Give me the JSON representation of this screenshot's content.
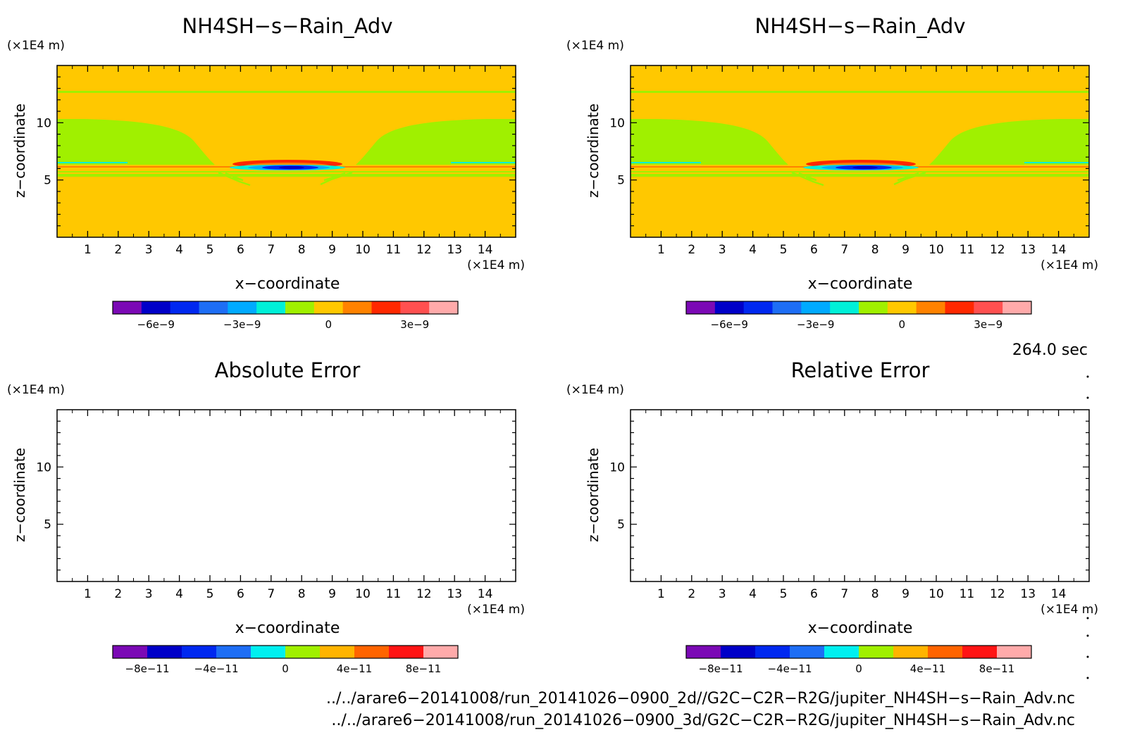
{
  "panels": [
    {
      "title": "NH4SH−s−Rain_Adv",
      "type": "contour"
    },
    {
      "title": "NH4SH−s−Rain_Adv",
      "type": "contour"
    },
    {
      "title": "Absolute Error",
      "type": "blank"
    },
    {
      "title": "Relative Error",
      "type": "blank"
    }
  ],
  "axes": {
    "xlabel": "x−coordinate",
    "ylabel": "z−coordinate",
    "unit": "(×1E4 m)",
    "xlim": [
      0,
      15
    ],
    "ylim": [
      0,
      15
    ],
    "xticks": [
      "1",
      "2",
      "3",
      "4",
      "5",
      "6",
      "7",
      "8",
      "9",
      "10",
      "11",
      "12",
      "13",
      "14"
    ],
    "yticks": [
      "5",
      "10"
    ]
  },
  "chart_data": [
    {
      "type": "heatmap",
      "title": "NH4SH−s−Rain_Adv",
      "xlabel": "x−coordinate",
      "ylabel": "z−coordinate",
      "xlim": [
        0,
        15
      ],
      "ylim": [
        0,
        15
      ],
      "background_value": 0,
      "features": [
        {
          "name": "upper-band",
          "z": 12.6,
          "value_sign": "slightly-negative"
        },
        {
          "name": "left-lobe",
          "x": [
            0,
            5
          ],
          "z": [
            6.3,
            10.2
          ],
          "value_sign": "slightly-negative"
        },
        {
          "name": "right-lobe",
          "x": [
            10.5,
            15
          ],
          "z": [
            6.3,
            10.2
          ],
          "value_sign": "slightly-negative"
        },
        {
          "name": "melting-layer",
          "z": [
            5.6,
            6.5
          ],
          "min": -6e-09,
          "max": 4e-09
        }
      ],
      "colorbar": {
        "colors": [
          "#7b09b5",
          "#0000c8",
          "#0028f0",
          "#1e6ef5",
          "#00aaff",
          "#00f0d8",
          "#a0f000",
          "#ffc800",
          "#ff8200",
          "#ff2800",
          "#ff5050",
          "#ffaaaa"
        ],
        "ticks": [
          "−6e−9",
          "−3e−9",
          "0",
          "3e−9"
        ]
      }
    },
    {
      "type": "heatmap",
      "title": "NH4SH−s−Rain_Adv",
      "xlabel": "x−coordinate",
      "ylabel": "z−coordinate",
      "xlim": [
        0,
        15
      ],
      "ylim": [
        0,
        15
      ],
      "background_value": 0,
      "colorbar": {
        "colors": [
          "#7b09b5",
          "#0000c8",
          "#0028f0",
          "#1e6ef5",
          "#00aaff",
          "#00f0d8",
          "#a0f000",
          "#ffc800",
          "#ff8200",
          "#ff2800",
          "#ff5050",
          "#ffaaaa"
        ],
        "ticks": [
          "−6e−9",
          "−3e−9",
          "0",
          "3e−9"
        ]
      }
    },
    {
      "type": "heatmap",
      "title": "Absolute Error",
      "xlabel": "x−coordinate",
      "ylabel": "z−coordinate",
      "colorbar": {
        "colors": [
          "#7b09b5",
          "#0000c8",
          "#0028f0",
          "#1e6ef5",
          "#00f0f0",
          "#a0f000",
          "#ffb400",
          "#ff6400",
          "#ff1414",
          "#ffaaaa"
        ],
        "ticks": [
          "−8e−11",
          "−4e−11",
          "0",
          "4e−11",
          "8e−11"
        ]
      }
    },
    {
      "type": "heatmap",
      "title": "Relative Error",
      "xlabel": "x−coordinate",
      "ylabel": "z−coordinate",
      "colorbar": {
        "colors": [
          "#7b09b5",
          "#0000c8",
          "#0028f0",
          "#1e6ef5",
          "#00f0f0",
          "#a0f000",
          "#ffb400",
          "#ff6400",
          "#ff1414",
          "#ffaaaa"
        ],
        "ticks": [
          "−8e−11",
          "−4e−11",
          "0",
          "4e−11",
          "8e−11"
        ]
      }
    }
  ],
  "time_label": "264.0 sec",
  "files": [
    "../../arare6−20141008/run_20141026−0900_2d//G2C−C2R−R2G/jupiter_NH4SH−s−Rain_Adv.nc",
    "../../arare6−20141008/run_20141026−0900_3d/G2C−C2R−R2G/jupiter_NH4SH−s−Rain_Adv.nc"
  ]
}
